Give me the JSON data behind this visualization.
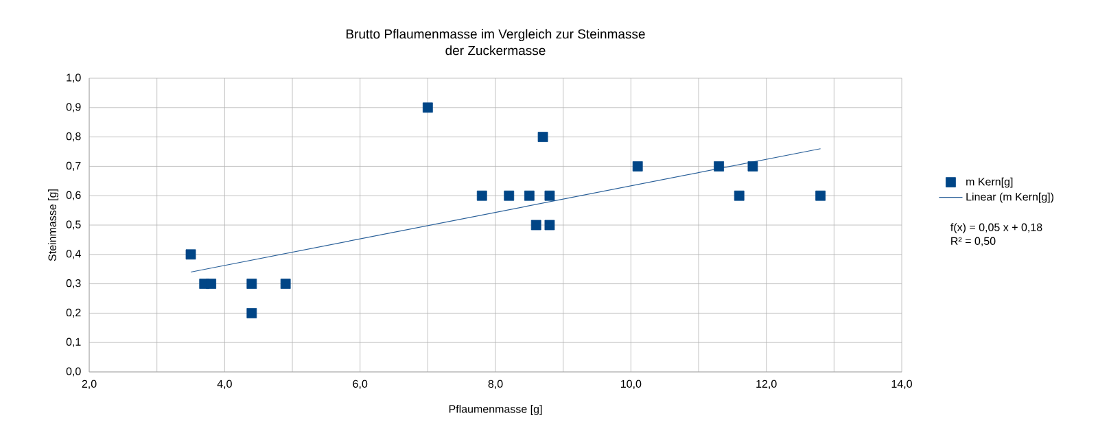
{
  "chart_data": {
    "type": "scatter",
    "title": "Brutto Pflaumenmasse im Vergleich zur Steinmasse",
    "subtitle": "der Zuckermasse",
    "xlabel": "Pflaumenmasse [g]",
    "ylabel": "Steinmasse [g]",
    "series": [
      {
        "name": "m Kern[g]",
        "color": "#004586",
        "marker": "square",
        "x": [
          3.5,
          3.7,
          3.8,
          4.4,
          4.4,
          4.9,
          7.0,
          7.8,
          8.2,
          8.5,
          8.6,
          8.7,
          8.8,
          8.8,
          10.1,
          11.3,
          11.6,
          11.8,
          12.8
        ],
        "values": [
          0.4,
          0.3,
          0.3,
          0.3,
          0.2,
          0.3,
          0.9,
          0.6,
          0.6,
          0.6,
          0.5,
          0.8,
          0.6,
          0.5,
          0.7,
          0.7,
          0.6,
          0.7,
          0.6
        ]
      },
      {
        "name": "Linear (m Kern[g])",
        "type": "line",
        "color": "#2a6099",
        "marker": "none",
        "line_style": "solid",
        "x": [
          3.5,
          12.8
        ],
        "values": [
          0.34,
          0.76
        ]
      }
    ],
    "xlim": [
      2,
      14
    ],
    "xticks": [
      {
        "value": 2,
        "label": "2,0"
      },
      {
        "value": 3,
        "label": null
      },
      {
        "value": 4,
        "label": "4,0"
      },
      {
        "value": 5,
        "label": null
      },
      {
        "value": 6,
        "label": "6,0"
      },
      {
        "value": 7,
        "label": null
      },
      {
        "value": 8,
        "label": "8,0"
      },
      {
        "value": 9,
        "label": null
      },
      {
        "value": 10,
        "label": "10,0"
      },
      {
        "value": 11,
        "label": null
      },
      {
        "value": 12,
        "label": "12,0"
      },
      {
        "value": 13,
        "label": null
      },
      {
        "value": 14,
        "label": "14,0"
      }
    ],
    "ylim": [
      0,
      1
    ],
    "yticks": [
      {
        "value": 0,
        "label": "0,0"
      },
      {
        "value": 0.1,
        "label": "0,1"
      },
      {
        "value": 0.2,
        "label": "0,2"
      },
      {
        "value": 0.3,
        "label": "0,3"
      },
      {
        "value": 0.4,
        "label": "0,4"
      },
      {
        "value": 0.5,
        "label": "0,5"
      },
      {
        "value": 0.6,
        "label": "0,6"
      },
      {
        "value": 0.7,
        "label": "0,7"
      },
      {
        "value": 0.8,
        "label": "0,8"
      },
      {
        "value": 0.9,
        "label": "0,9"
      },
      {
        "value": 1,
        "label": "1,0"
      }
    ],
    "grid": true,
    "legend": "right",
    "annotations": [
      "f(x) = 0,05 x + 0,18",
      "R² = 0,50"
    ]
  }
}
